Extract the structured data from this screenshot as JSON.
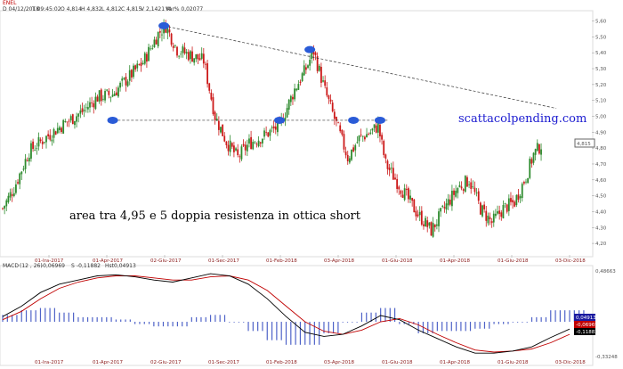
{
  "header": {
    "symbol": "ENEL",
    "date": "D 04/12/2018",
    "time": "T 09:45:02",
    "open": "O 4,814",
    "high": "H 4,832",
    "low": "L 4,812",
    "close": "C 4,815",
    "volume": "V 2,1421 M",
    "var_pct": "Var% 0,02077"
  },
  "macd_header": {
    "name": "MACD",
    "params": "(12 , 26)",
    "macd_value": "-0,06969",
    "signal_label": "S",
    "signal_value": "-0,11882",
    "hist_label": "Hst",
    "hist_value": "0,04913"
  },
  "annotations": {
    "main_text": "area tra 4,95 e 5 doppia resistenza in ottica short",
    "brand": "scattacolpending.com",
    "last_price_label": "4,815"
  },
  "macd_badges": [
    {
      "text": "0,04913",
      "color": "#1a1aa0"
    },
    {
      "text": "-0,06969",
      "color": "#c00000"
    },
    {
      "text": "-0,11882",
      "color": "#000000"
    }
  ],
  "colors": {
    "up_candle": "#2e8b2e",
    "down_candle": "#cc1a1a",
    "marker": "#2a5bd7",
    "macd_line": "#000000",
    "signal_line": "#c00000",
    "histogram": "#4f63c8"
  },
  "chart_data": [
    {
      "type": "candlestick",
      "title": "ENEL",
      "x_tick_labels": [
        "01-Ira-2017",
        "01-Apr-2017",
        "02-Giu-2017",
        "01-Sec-2017",
        "01-Feb-2018",
        "03-Apr-2018",
        "01-Giu-2018",
        "01-Apr-2018",
        "01-Giu-2018",
        "03-Dic-2018"
      ],
      "y_tick_labels": [
        "5,60",
        "5,50",
        "5,40",
        "5,30",
        "5,20",
        "5,10",
        "5,00",
        "4,90",
        "4,80",
        "4,70",
        "4,60",
        "4,50",
        "4,40",
        "4,30",
        "4,20"
      ],
      "ylim": [
        4.15,
        5.62
      ],
      "trend_close_points": [
        [
          0,
          4.42
        ],
        [
          6,
          4.55
        ],
        [
          14,
          4.78
        ],
        [
          22,
          4.86
        ],
        [
          32,
          4.95
        ],
        [
          42,
          5.03
        ],
        [
          50,
          5.12
        ],
        [
          58,
          5.14
        ],
        [
          66,
          5.24
        ],
        [
          74,
          5.34
        ],
        [
          82,
          5.52
        ],
        [
          86,
          5.57
        ],
        [
          92,
          5.42
        ],
        [
          100,
          5.38
        ],
        [
          106,
          5.35
        ],
        [
          112,
          5.0
        ],
        [
          118,
          4.84
        ],
        [
          124,
          4.74
        ],
        [
          130,
          4.83
        ],
        [
          138,
          4.88
        ],
        [
          146,
          4.94
        ],
        [
          154,
          5.17
        ],
        [
          160,
          5.3
        ],
        [
          164,
          5.41
        ],
        [
          170,
          5.16
        ],
        [
          176,
          4.95
        ],
        [
          182,
          4.74
        ],
        [
          188,
          4.86
        ],
        [
          194,
          4.9
        ],
        [
          198,
          4.94
        ],
        [
          202,
          4.7
        ],
        [
          210,
          4.55
        ],
        [
          218,
          4.4
        ],
        [
          226,
          4.28
        ],
        [
          234,
          4.44
        ],
        [
          240,
          4.55
        ],
        [
          246,
          4.6
        ],
        [
          252,
          4.42
        ],
        [
          258,
          4.33
        ],
        [
          264,
          4.42
        ],
        [
          270,
          4.46
        ],
        [
          276,
          4.62
        ],
        [
          280,
          4.76
        ],
        [
          284,
          4.82
        ]
      ],
      "markers": [
        {
          "date_index": 85,
          "price": 5.57
        },
        {
          "date_index": 162,
          "price": 5.42
        },
        {
          "date_index": 58,
          "price": 4.975
        },
        {
          "date_index": 146,
          "price": 4.975
        },
        {
          "date_index": 185,
          "price": 4.975
        },
        {
          "date_index": 199,
          "price": 4.975
        }
      ],
      "resistance_horizontal": 4.975,
      "descending_trendline": [
        [
          85,
          5.57
        ],
        [
          292,
          5.05
        ]
      ],
      "last_price": 4.815
    },
    {
      "type": "line",
      "title": "MACD",
      "ylim": [
        -0.33248,
        0.48663
      ],
      "y_tick_labels": [
        "0,48663",
        "-0,33248"
      ],
      "series": [
        {
          "name": "MACD",
          "values": [
            0.05,
            0.15,
            0.28,
            0.36,
            0.4,
            0.44,
            0.45,
            0.43,
            0.4,
            0.38,
            0.42,
            0.46,
            0.44,
            0.36,
            0.22,
            0.05,
            -0.1,
            -0.14,
            -0.12,
            -0.04,
            0.06,
            0.02,
            -0.08,
            -0.16,
            -0.24,
            -0.3,
            -0.3,
            -0.28,
            -0.24,
            -0.15,
            -0.07
          ]
        },
        {
          "name": "Signal",
          "values": [
            0.02,
            0.1,
            0.22,
            0.32,
            0.38,
            0.42,
            0.44,
            0.44,
            0.42,
            0.4,
            0.4,
            0.43,
            0.44,
            0.4,
            0.3,
            0.15,
            0.0,
            -0.09,
            -0.12,
            -0.08,
            0.0,
            0.03,
            -0.03,
            -0.12,
            -0.2,
            -0.27,
            -0.29,
            -0.28,
            -0.26,
            -0.2,
            -0.12
          ]
        }
      ]
    }
  ]
}
